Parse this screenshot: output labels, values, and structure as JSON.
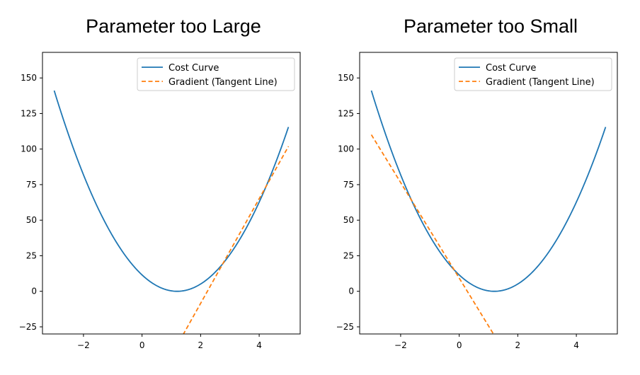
{
  "chart_data": [
    {
      "type": "line",
      "title": "Parameter too Large",
      "xlabel": "",
      "ylabel": "",
      "xlim": [
        -3.4,
        5.4
      ],
      "ylim": [
        -30,
        168
      ],
      "xticks": [
        -2,
        0,
        2,
        4
      ],
      "yticks": [
        -25,
        0,
        25,
        50,
        75,
        100,
        125,
        150
      ],
      "xtick_labels": [
        "−2",
        "0",
        "2",
        "4"
      ],
      "ytick_labels": [
        "−25",
        "0",
        "25",
        "50",
        "75",
        "100",
        "125",
        "150"
      ],
      "grid": false,
      "legend_position": "upper-right",
      "series": [
        {
          "name": "Cost Curve",
          "style": "solid",
          "color": "#1f77b4",
          "function": "8*(x-1.2)^2",
          "x_range": [
            -3,
            5
          ]
        },
        {
          "name": "Gradient (Tangent Line)",
          "style": "dashed",
          "color": "#ff7f0e",
          "function": "36.8*x - 82.1",
          "x_range": [
            1.4,
            5
          ]
        }
      ]
    },
    {
      "type": "line",
      "title": "Parameter too Small",
      "xlabel": "",
      "ylabel": "",
      "xlim": [
        -3.4,
        5.4
      ],
      "ylim": [
        -30,
        168
      ],
      "xticks": [
        -2,
        0,
        2,
        4
      ],
      "yticks": [
        -25,
        0,
        25,
        50,
        75,
        100,
        125,
        150
      ],
      "xtick_labels": [
        "−2",
        "0",
        "2",
        "4"
      ],
      "ytick_labels": [
        "−25",
        "0",
        "25",
        "50",
        "75",
        "100",
        "125",
        "150"
      ],
      "grid": false,
      "legend_position": "upper-right",
      "series": [
        {
          "name": "Cost Curve",
          "style": "solid",
          "color": "#1f77b4",
          "function": "8*(x-1.2)^2",
          "x_range": [
            -3,
            5
          ]
        },
        {
          "name": "Gradient (Tangent Line)",
          "style": "dashed",
          "color": "#ff7f0e",
          "function": "-33.6*x + 9.28",
          "x_range": [
            -3,
            1.2
          ]
        }
      ]
    }
  ]
}
